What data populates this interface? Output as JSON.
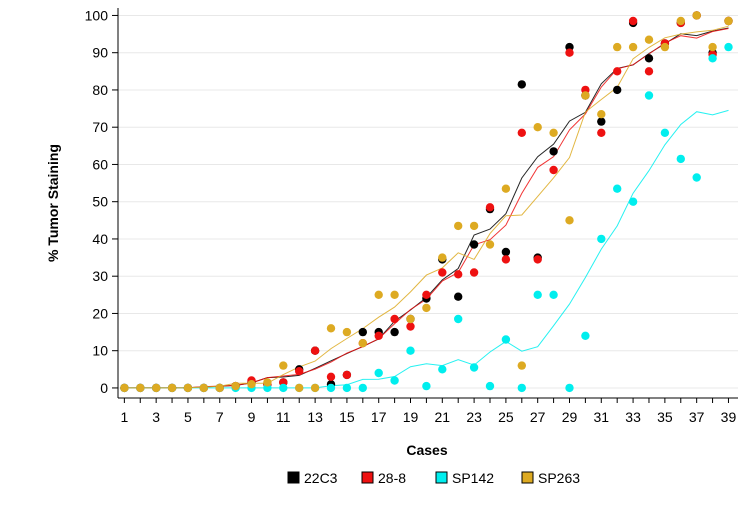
{
  "chart_data": {
    "type": "scatter",
    "title": "",
    "xlabel": "Cases",
    "ylabel": "% Tumor Staining",
    "xlim": [
      1,
      39
    ],
    "ylim": [
      0,
      100
    ],
    "x_ticks": [
      1,
      3,
      5,
      7,
      9,
      11,
      13,
      15,
      17,
      19,
      21,
      23,
      25,
      27,
      29,
      31,
      33,
      35,
      37,
      39
    ],
    "y_ticks": [
      0,
      10,
      20,
      30,
      40,
      50,
      60,
      70,
      80,
      90,
      100
    ],
    "grid": "horizontal",
    "legend_position": "bottom",
    "trend_lines": true,
    "series": [
      {
        "name": "22C3",
        "color": "#000000",
        "points": [
          [
            1,
            0
          ],
          [
            2,
            0
          ],
          [
            3,
            0
          ],
          [
            4,
            0
          ],
          [
            5,
            0
          ],
          [
            6,
            0
          ],
          [
            7,
            0
          ],
          [
            8,
            0.5
          ],
          [
            9,
            1.5
          ],
          [
            10,
            1
          ],
          [
            11,
            1.5
          ],
          [
            12,
            5
          ],
          [
            13,
            10
          ],
          [
            14,
            1
          ],
          [
            15,
            3.5
          ],
          [
            16,
            15
          ],
          [
            17,
            15
          ],
          [
            18,
            15
          ],
          [
            19,
            18.5
          ],
          [
            20,
            24
          ],
          [
            21,
            34.5
          ],
          [
            22,
            24.5
          ],
          [
            23,
            38.5
          ],
          [
            24,
            48
          ],
          [
            25,
            36.5
          ],
          [
            26,
            81.5
          ],
          [
            27,
            35
          ],
          [
            28,
            63.5
          ],
          [
            29,
            91.5
          ],
          [
            30,
            78.5
          ],
          [
            31,
            71.5
          ],
          [
            32,
            80
          ],
          [
            33,
            98
          ],
          [
            34,
            88.5
          ],
          [
            35,
            92.5
          ],
          [
            36,
            98
          ],
          [
            37,
            100
          ],
          [
            38,
            90
          ],
          [
            39,
            98.5
          ]
        ]
      },
      {
        "name": "28-8",
        "color": "#ee1111",
        "points": [
          [
            1,
            0
          ],
          [
            2,
            0
          ],
          [
            3,
            0
          ],
          [
            4,
            0
          ],
          [
            5,
            0
          ],
          [
            6,
            0
          ],
          [
            7,
            0
          ],
          [
            8,
            0.5
          ],
          [
            9,
            2
          ],
          [
            10,
            1
          ],
          [
            11,
            1.5
          ],
          [
            12,
            4.5
          ],
          [
            13,
            10
          ],
          [
            14,
            3
          ],
          [
            15,
            3.5
          ],
          [
            16,
            12
          ],
          [
            17,
            14
          ],
          [
            18,
            18.5
          ],
          [
            19,
            16.5
          ],
          [
            20,
            25
          ],
          [
            21,
            31
          ],
          [
            22,
            30.5
          ],
          [
            23,
            31
          ],
          [
            24,
            48.5
          ],
          [
            25,
            34.5
          ],
          [
            26,
            68.5
          ],
          [
            27,
            34.5
          ],
          [
            28,
            58.5
          ],
          [
            29,
            90
          ],
          [
            30,
            80
          ],
          [
            31,
            68.5
          ],
          [
            32,
            85
          ],
          [
            33,
            98.5
          ],
          [
            34,
            85
          ],
          [
            35,
            92.5
          ],
          [
            36,
            98
          ],
          [
            37,
            100
          ],
          [
            38,
            89.5
          ],
          [
            39,
            98.5
          ]
        ]
      },
      {
        "name": "SP142",
        "color": "#00eeee",
        "points": [
          [
            1,
            0
          ],
          [
            2,
            0
          ],
          [
            3,
            0
          ],
          [
            4,
            0
          ],
          [
            5,
            0
          ],
          [
            6,
            0
          ],
          [
            7,
            0
          ],
          [
            8,
            0
          ],
          [
            9,
            0
          ],
          [
            10,
            0
          ],
          [
            11,
            0
          ],
          [
            12,
            0
          ],
          [
            13,
            0
          ],
          [
            14,
            0
          ],
          [
            15,
            0
          ],
          [
            16,
            0
          ],
          [
            17,
            4
          ],
          [
            18,
            2
          ],
          [
            19,
            10
          ],
          [
            20,
            0.5
          ],
          [
            21,
            5
          ],
          [
            22,
            18.5
          ],
          [
            23,
            5.5
          ],
          [
            24,
            0.5
          ],
          [
            25,
            13
          ],
          [
            26,
            0
          ],
          [
            27,
            25
          ],
          [
            28,
            25
          ],
          [
            29,
            0
          ],
          [
            30,
            14
          ],
          [
            31,
            40
          ],
          [
            32,
            53.5
          ],
          [
            33,
            50
          ],
          [
            34,
            78.5
          ],
          [
            35,
            68.5
          ],
          [
            36,
            61.5
          ],
          [
            37,
            56.5
          ],
          [
            38,
            88.5
          ],
          [
            39,
            91.5
          ]
        ]
      },
      {
        "name": "SP263",
        "color": "#ddaa22",
        "points": [
          [
            1,
            0
          ],
          [
            2,
            0
          ],
          [
            3,
            0
          ],
          [
            4,
            0
          ],
          [
            5,
            0
          ],
          [
            6,
            0
          ],
          [
            7,
            0
          ],
          [
            8,
            0.5
          ],
          [
            9,
            1
          ],
          [
            10,
            1.5
          ],
          [
            11,
            6
          ],
          [
            12,
            0
          ],
          [
            13,
            0
          ],
          [
            14,
            16
          ],
          [
            15,
            15
          ],
          [
            16,
            12
          ],
          [
            17,
            25
          ],
          [
            18,
            25
          ],
          [
            19,
            18.5
          ],
          [
            20,
            21.5
          ],
          [
            21,
            35
          ],
          [
            22,
            43.5
          ],
          [
            23,
            43.5
          ],
          [
            24,
            38.5
          ],
          [
            25,
            53.5
          ],
          [
            26,
            6
          ],
          [
            27,
            70
          ],
          [
            28,
            68.5
          ],
          [
            29,
            45
          ],
          [
            30,
            78.5
          ],
          [
            31,
            73.5
          ],
          [
            32,
            91.5
          ],
          [
            33,
            91.5
          ],
          [
            34,
            93.5
          ],
          [
            35,
            91.5
          ],
          [
            36,
            98.5
          ],
          [
            37,
            100
          ],
          [
            38,
            91.5
          ],
          [
            39,
            98.5
          ]
        ]
      }
    ]
  }
}
